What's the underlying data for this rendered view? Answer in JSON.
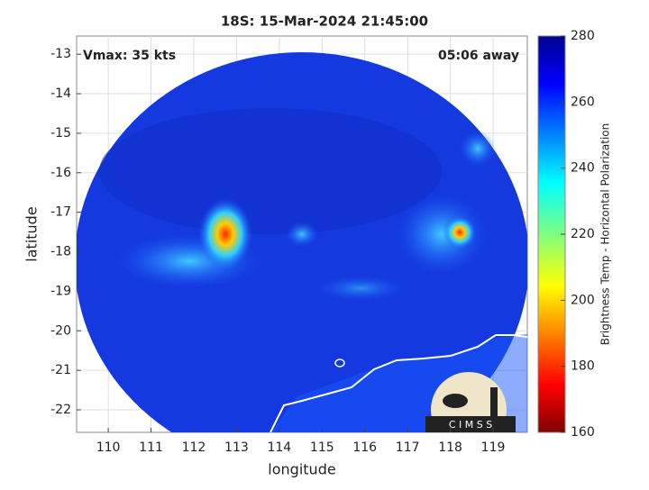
{
  "title": "18S: 15-Mar-2024 21:45:00",
  "annotations": {
    "vmax": "Vmax: 35 kts",
    "away": "05:06 away"
  },
  "map": {
    "xlabel": "longitude",
    "ylabel": "latitude",
    "xlim": [
      109.26,
      119.8
    ],
    "ylim": [
      -22.57,
      -12.54
    ],
    "xticks": [
      110,
      111,
      112,
      113,
      114,
      115,
      116,
      117,
      118,
      119
    ],
    "yticks": [
      -13,
      -14,
      -15,
      -16,
      -17,
      -18,
      -19,
      -20,
      -21,
      -22
    ],
    "grid": true
  },
  "colorbar": {
    "label": "Brightness Temp - Horizontal Polarization",
    "lim": [
      160,
      280
    ],
    "ticks": [
      160,
      180,
      200,
      220,
      240,
      260,
      280
    ]
  },
  "logo": "C I M S S"
}
